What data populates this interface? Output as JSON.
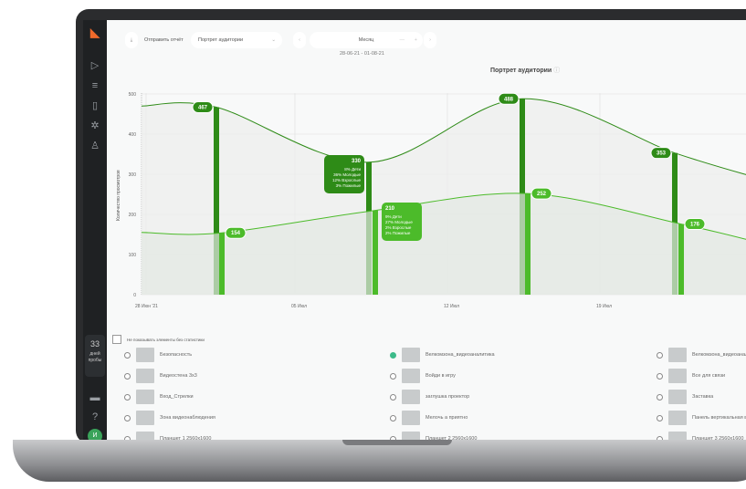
{
  "toolbar": {
    "send_report": "Отправить отчёт",
    "report_select": "Портрет аудитории",
    "period": "Месяц",
    "date_range": "28-06-21 - 01-08-21"
  },
  "sidebar": {
    "trial_count": "33",
    "trial_label": "дней пробы",
    "avatar": "И",
    "icons": [
      "logo",
      "play-icon",
      "filter-icon",
      "file-icon",
      "loader-icon",
      "user-icon",
      "monitor-icon",
      "help-icon"
    ]
  },
  "chart_data": {
    "type": "line+bar",
    "title": "Портрет аудитории",
    "ylabel": "Количество просмотров",
    "ylim": [
      0,
      500
    ],
    "yticks": [
      "0",
      "100",
      "200",
      "300",
      "400",
      "500"
    ],
    "xticks": [
      "28 Июн '21",
      "05 Июл",
      "12 Июл",
      "19 Июл"
    ],
    "grid": true,
    "series": [
      {
        "color": "#2e8b17",
        "values": [
          467,
          330,
          488,
          353
        ]
      },
      {
        "color": "#4cbb2a",
        "values": [
          154,
          210,
          252,
          176
        ]
      }
    ],
    "tooltips": [
      {
        "value": "330",
        "lines": [
          "8% Дети",
          "36% Молодые",
          "12% Взрослые",
          "3% Пожилые"
        ]
      },
      {
        "value": "210",
        "lines": [
          "9% Дети",
          "27% Молодые",
          "2% Взрослые",
          "2% Пожилые"
        ]
      }
    ]
  },
  "list": {
    "hide_empty": "Не показывать элементы без статистики",
    "items": [
      {
        "label": "Безопасность",
        "checked": false
      },
      {
        "label": "Велкомзона_видеоаналитика",
        "checked": true
      },
      {
        "label": "Велкомзона_видеоаналитика",
        "checked": false
      },
      {
        "label": "Видеостена 3х3",
        "checked": false
      },
      {
        "label": "Войди в игру",
        "checked": false
      },
      {
        "label": "Все для связи",
        "checked": false
      },
      {
        "label": "Вход_Стрелки",
        "checked": false
      },
      {
        "label": "заглушка проектор",
        "checked": false
      },
      {
        "label": "Заставка",
        "checked": false
      },
      {
        "label": "Зона видеонаблюдения",
        "checked": false
      },
      {
        "label": "Мелочь а приятно",
        "checked": false
      },
      {
        "label": "Панель вертикальная внутр",
        "checked": false
      },
      {
        "label": "Планшет 1 2560х1600",
        "checked": false
      },
      {
        "label": "Планшет 2 2560х1600",
        "checked": false
      },
      {
        "label": "Планшет 3 2560х1600",
        "checked": false
      }
    ]
  }
}
